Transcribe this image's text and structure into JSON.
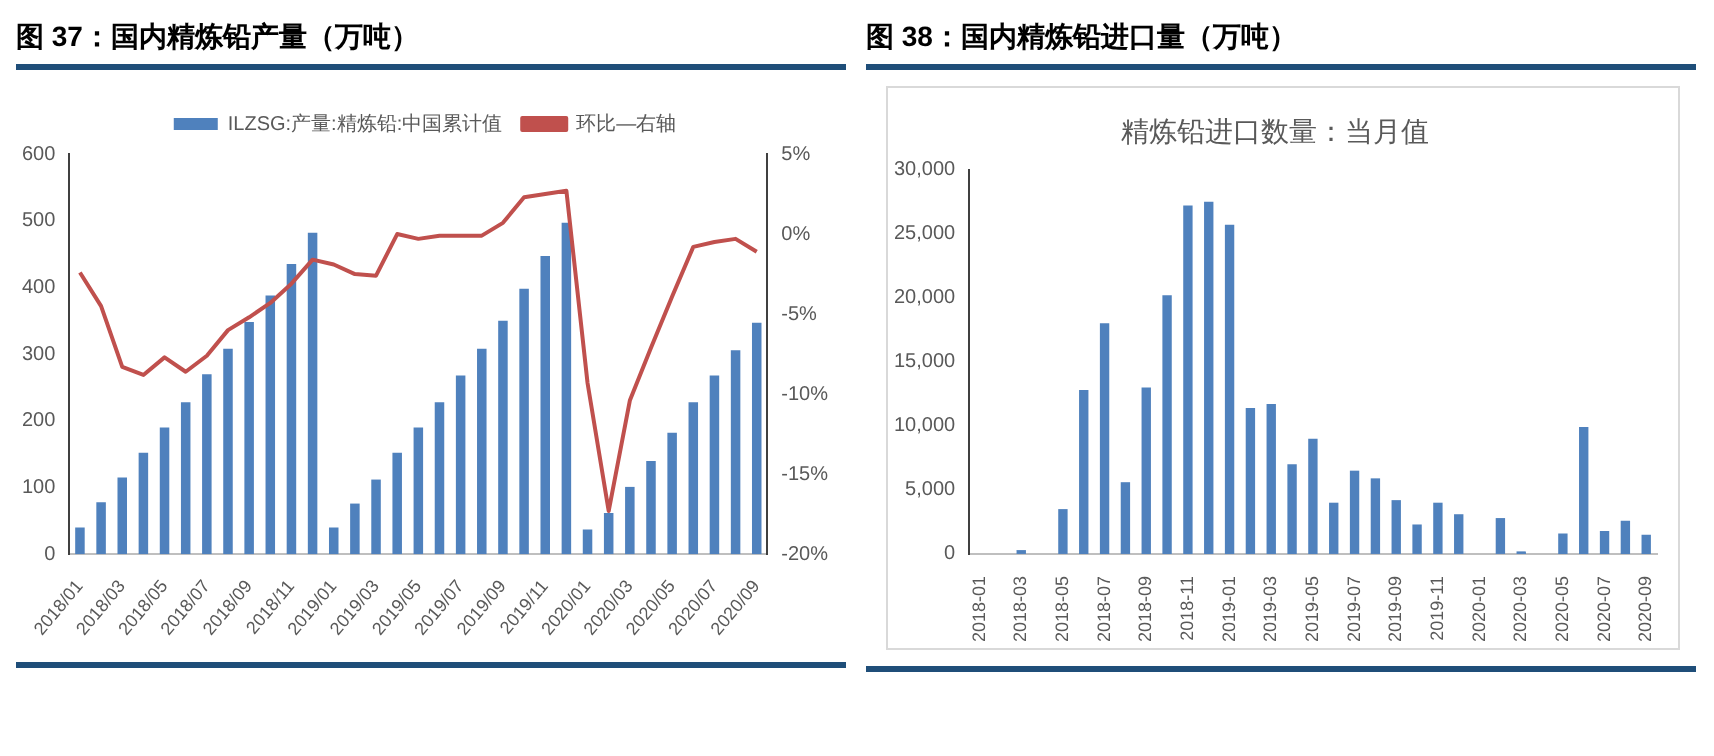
{
  "chart_data": [
    {
      "type": "bar",
      "title": "图 37：国内精炼铅产量（万吨）",
      "categories": [
        "2018/01",
        null,
        "2018/03",
        null,
        "2018/05",
        null,
        "2018/07",
        null,
        "2018/09",
        null,
        "2018/11",
        null,
        "2019/01",
        null,
        "2019/03",
        null,
        "2019/05",
        null,
        "2019/07",
        null,
        "2019/09",
        null,
        "2019/11",
        null,
        "2020/01",
        null,
        "2020/03",
        null,
        "2020/05",
        null,
        "2020/07",
        null,
        "2020/09"
      ],
      "series": [
        {
          "name": "ILZSG:产量:精炼铅:中国累计值",
          "color": "#4f81bd",
          "values": [
            40,
            78,
            115,
            152,
            190,
            228,
            270,
            308,
            348,
            388,
            435,
            482,
            40,
            76,
            112,
            152,
            190,
            228,
            268,
            308,
            350,
            398,
            447,
            497,
            37,
            62,
            101,
            140,
            182,
            228,
            268,
            306,
            347
          ]
        },
        {
          "name": "环比—右轴",
          "type": "line",
          "axis": "y2",
          "color": "#c0504d",
          "values": [
            -2.4,
            -4.5,
            -8.3,
            -8.8,
            -7.7,
            -8.6,
            -7.6,
            -6.0,
            -5.2,
            -4.3,
            -3.1,
            -1.6,
            -1.9,
            -2.5,
            -2.6,
            0,
            -0.3,
            -0.1,
            -0.1,
            -0.1,
            0.7,
            2.3,
            2.5,
            2.7,
            -9.3,
            -17.3,
            -10.4,
            -7.1,
            -3.9,
            -0.8,
            -0.5,
            -0.3,
            -1.1
          ]
        }
      ],
      "ylim": [
        0,
        600
      ],
      "yticks": [
        0,
        100,
        200,
        300,
        400,
        500,
        600
      ],
      "y2lim": [
        -20,
        5
      ],
      "y2ticks": [
        {
          "value": -20,
          "label": "-20%"
        },
        {
          "value": -15,
          "label": "-15%"
        },
        {
          "value": -10,
          "label": "-10%"
        },
        {
          "value": -5,
          "label": "-5%"
        },
        {
          "value": 0,
          "label": "0%"
        },
        {
          "value": 5,
          "label": "5%"
        }
      ],
      "grid": false,
      "legend": "top",
      "marker": "none",
      "line_style": "solid"
    },
    {
      "type": "bar",
      "title": "图 38：国内精炼铅进口量（万吨）",
      "subtitle": "精炼铅进口数量：当月值",
      "categories": [
        "2018-01",
        null,
        "2018-03",
        null,
        "2018-05",
        null,
        "2018-07",
        null,
        "2018-09",
        null,
        "2018-11",
        null,
        "2019-01",
        null,
        "2019-03",
        null,
        "2019-05",
        null,
        "2019-07",
        null,
        "2019-09",
        null,
        "2019-11",
        null,
        "2020-01",
        null,
        "2020-03",
        null,
        "2020-05",
        null,
        "2020-07",
        null,
        "2020-09"
      ],
      "series": [
        {
          "color": "#4f81bd",
          "values": [
            0,
            0,
            300,
            0,
            3500,
            12800,
            18000,
            5600,
            13000,
            20200,
            27200,
            27500,
            25700,
            11400,
            11700,
            7000,
            9000,
            4000,
            6500,
            5900,
            4200,
            2300,
            4000,
            3100,
            0,
            2800,
            200,
            0,
            1600,
            9900,
            1800,
            2600,
            1500
          ]
        }
      ],
      "ylim": [
        0,
        30000
      ],
      "yticks": [
        0,
        {
          "value": 5000,
          "label": "5,000"
        },
        {
          "value": 10000,
          "label": "10,000"
        },
        {
          "value": 15000,
          "label": "15,000"
        },
        {
          "value": 20000,
          "label": "20,000"
        },
        {
          "value": 25000,
          "label": "25,000"
        },
        {
          "value": 30000,
          "label": "30,000"
        }
      ],
      "grid": false,
      "legend": false
    }
  ]
}
